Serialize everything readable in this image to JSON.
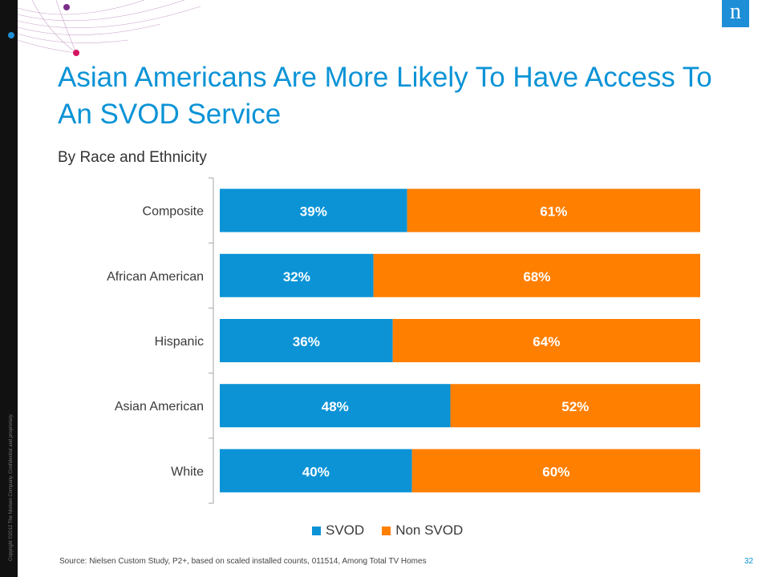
{
  "copyright": "Copyright ©2012 The Nielsen Company. Confidential and proprietary.",
  "logo": {
    "letter": "n"
  },
  "colors": {
    "svod": "#0b93d6",
    "non_svod": "#ff7f00",
    "title": "#0b93d6",
    "logo_bg": "#1e8fd6",
    "deco_dots": [
      "#1e8fd6",
      "#7b2d8b",
      "#d6145f"
    ]
  },
  "slide": {
    "title_line1": "Asian Americans Are More Likely To Have Access To",
    "title_line2": "An SVOD Service",
    "subtitle": "By Race and Ethnicity",
    "source": "Source:  Nielsen Custom Study, P2+, based on scaled installed counts, 011514, Among Total TV Homes",
    "page_number": "32"
  },
  "legend": [
    {
      "name": "SVOD",
      "color": "#0b93d6"
    },
    {
      "name": "Non SVOD",
      "color": "#ff7f00"
    }
  ],
  "chart_data": {
    "type": "bar",
    "orientation": "horizontal",
    "stacked": true,
    "percent_stacked": true,
    "categories": [
      "Composite",
      "African American",
      "Hispanic",
      "Asian American",
      "White"
    ],
    "series": [
      {
        "name": "SVOD",
        "values": [
          39,
          32,
          36,
          48,
          40
        ],
        "labels": [
          "39%",
          "32%",
          "36%",
          "48%",
          "40%"
        ],
        "color": "#0b93d6"
      },
      {
        "name": "Non SVOD",
        "values": [
          61,
          68,
          64,
          52,
          60
        ],
        "labels": [
          "61%",
          "68%",
          "64%",
          "52%",
          "60%"
        ],
        "color": "#ff7f00"
      }
    ],
    "title": "",
    "xlabel": "",
    "ylabel": "",
    "xlim": [
      0,
      100
    ],
    "grid": false,
    "legend_position": "bottom"
  }
}
